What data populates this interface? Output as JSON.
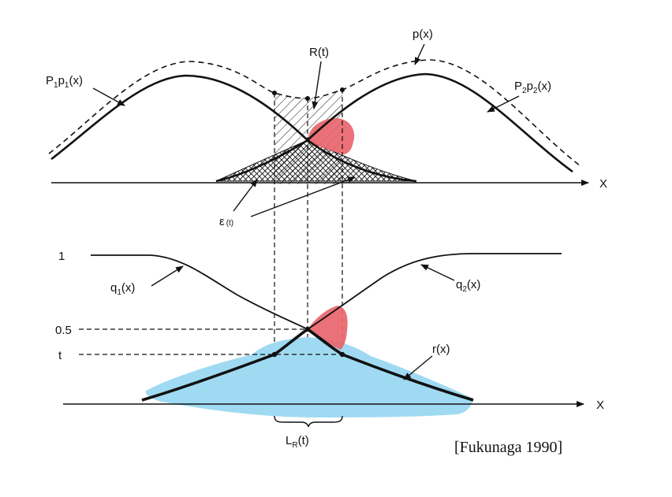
{
  "top_panel": {
    "mixture_label": "p(x)",
    "class1_label": {
      "base": "P",
      "s1": "1",
      "mid": "p",
      "s2": "1",
      "tail": "(x)"
    },
    "class2_label": {
      "base": "P",
      "s1": "2",
      "mid": "p",
      "s2": "2",
      "tail": "(x)"
    },
    "reject_region_label": "R(t)",
    "error_label": {
      "base": "ε",
      "sub": "(t)"
    },
    "axis_label": "X"
  },
  "bottom_panel": {
    "q1_label": {
      "base": "q",
      "sub": "1",
      "tail": "(x)"
    },
    "q2_label": {
      "base": "q",
      "sub": "2",
      "tail": "(x)"
    },
    "r_label": "r(x)",
    "y_tick_1": "1",
    "y_tick_05": "0.5",
    "y_tick_t": "t",
    "axis_label": "X",
    "width_label": {
      "base": "L",
      "sub": "R",
      "tail": "(t)"
    }
  },
  "citation": "[Fukunaga 1990]",
  "colors": {
    "ink": "#111111",
    "highlight_red": "#e8656b",
    "highlight_blue": "#9fdaf2"
  }
}
